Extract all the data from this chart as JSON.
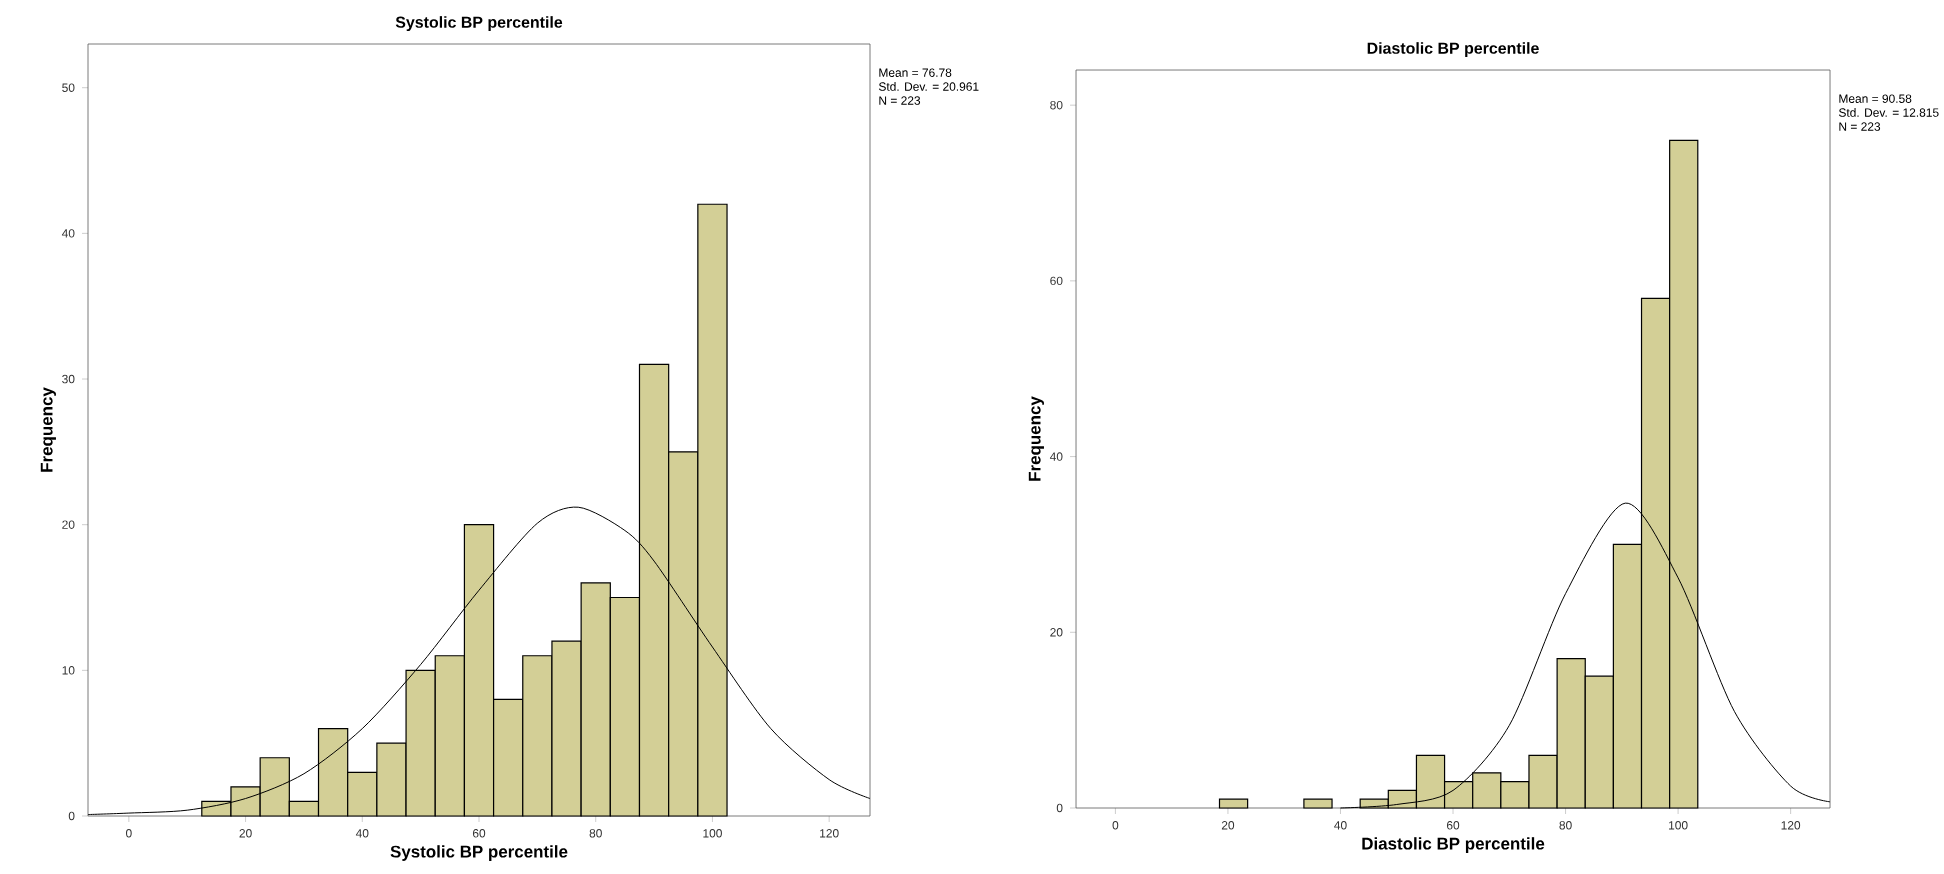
{
  "chart_data": [
    {
      "type": "histogram",
      "title": "Systolic BP percentile",
      "xlabel": "Systolic BP percentile",
      "ylabel": "Frequency",
      "series": [
        {
          "bins": [
            12.5,
            17.5,
            22.5,
            27.5,
            32.5,
            37.5,
            42.5,
            47.5,
            52.5,
            57.5,
            62.5,
            67.5,
            72.5,
            77.5,
            82.5,
            87.5,
            92.5,
            97.5,
            102.5
          ],
          "values": [
            1,
            2,
            4,
            1,
            6,
            3,
            5,
            10,
            11,
            20,
            8,
            11,
            12,
            16,
            15,
            31,
            25,
            42
          ],
          "color": "#d3cf96"
        },
        {
          "type": "line",
          "x": [
            -7,
            0,
            10,
            20,
            30,
            40,
            50,
            60,
            70,
            77,
            85,
            90,
            100,
            110,
            120,
            127
          ],
          "values": [
            0.1,
            0.2,
            0.4,
            1.2,
            2.9,
            6.0,
            10.4,
            15.5,
            20.1,
            21.2,
            19.6,
            17.5,
            11.6,
            6.0,
            2.5,
            1.2
          ],
          "color": "#000000"
        }
      ],
      "xlim": [
        -7,
        127
      ],
      "ylim": [
        0,
        53
      ],
      "xticks": [
        0,
        20,
        40,
        60,
        80,
        100,
        120
      ],
      "yticks": [
        0,
        10,
        20,
        30,
        40,
        50
      ],
      "annotations": [
        "Mean = 76.78",
        "Std. Dev. = 20.961",
        "N = 223"
      ]
    },
    {
      "type": "histogram",
      "title": "Diastolic BP percentile",
      "xlabel": "Diastolic BP percentile",
      "ylabel": "Frequency",
      "series": [
        {
          "bins": [
            18.5,
            23.5,
            28.5,
            33.5,
            38.5,
            43.5,
            48.5,
            53.5,
            58.5,
            63.5,
            68.5,
            73.5,
            78.5,
            83.5,
            88.5,
            93.5,
            98.5,
            103.5
          ],
          "values": [
            1,
            0,
            0,
            1,
            0,
            1,
            2,
            6,
            3,
            4,
            3,
            6,
            17,
            15,
            30,
            58,
            76
          ],
          "color": "#d3cf96"
        },
        {
          "type": "line",
          "x": [
            40,
            50,
            60,
            70,
            80,
            90.6,
            100,
            110,
            120,
            127
          ],
          "values": [
            0,
            0.4,
            2.0,
            9.4,
            24.4,
            34.7,
            26.2,
            11.0,
            2.5,
            0.7
          ],
          "color": "#000000"
        }
      ],
      "xlim": [
        -7,
        127
      ],
      "ylim": [
        0,
        84
      ],
      "xticks": [
        0,
        20,
        40,
        60,
        80,
        100,
        120
      ],
      "yticks": [
        0,
        20,
        40,
        60,
        80
      ],
      "annotations": [
        "Mean = 90.58",
        "Std. Dev. = 12.815",
        "N = 223"
      ]
    }
  ]
}
